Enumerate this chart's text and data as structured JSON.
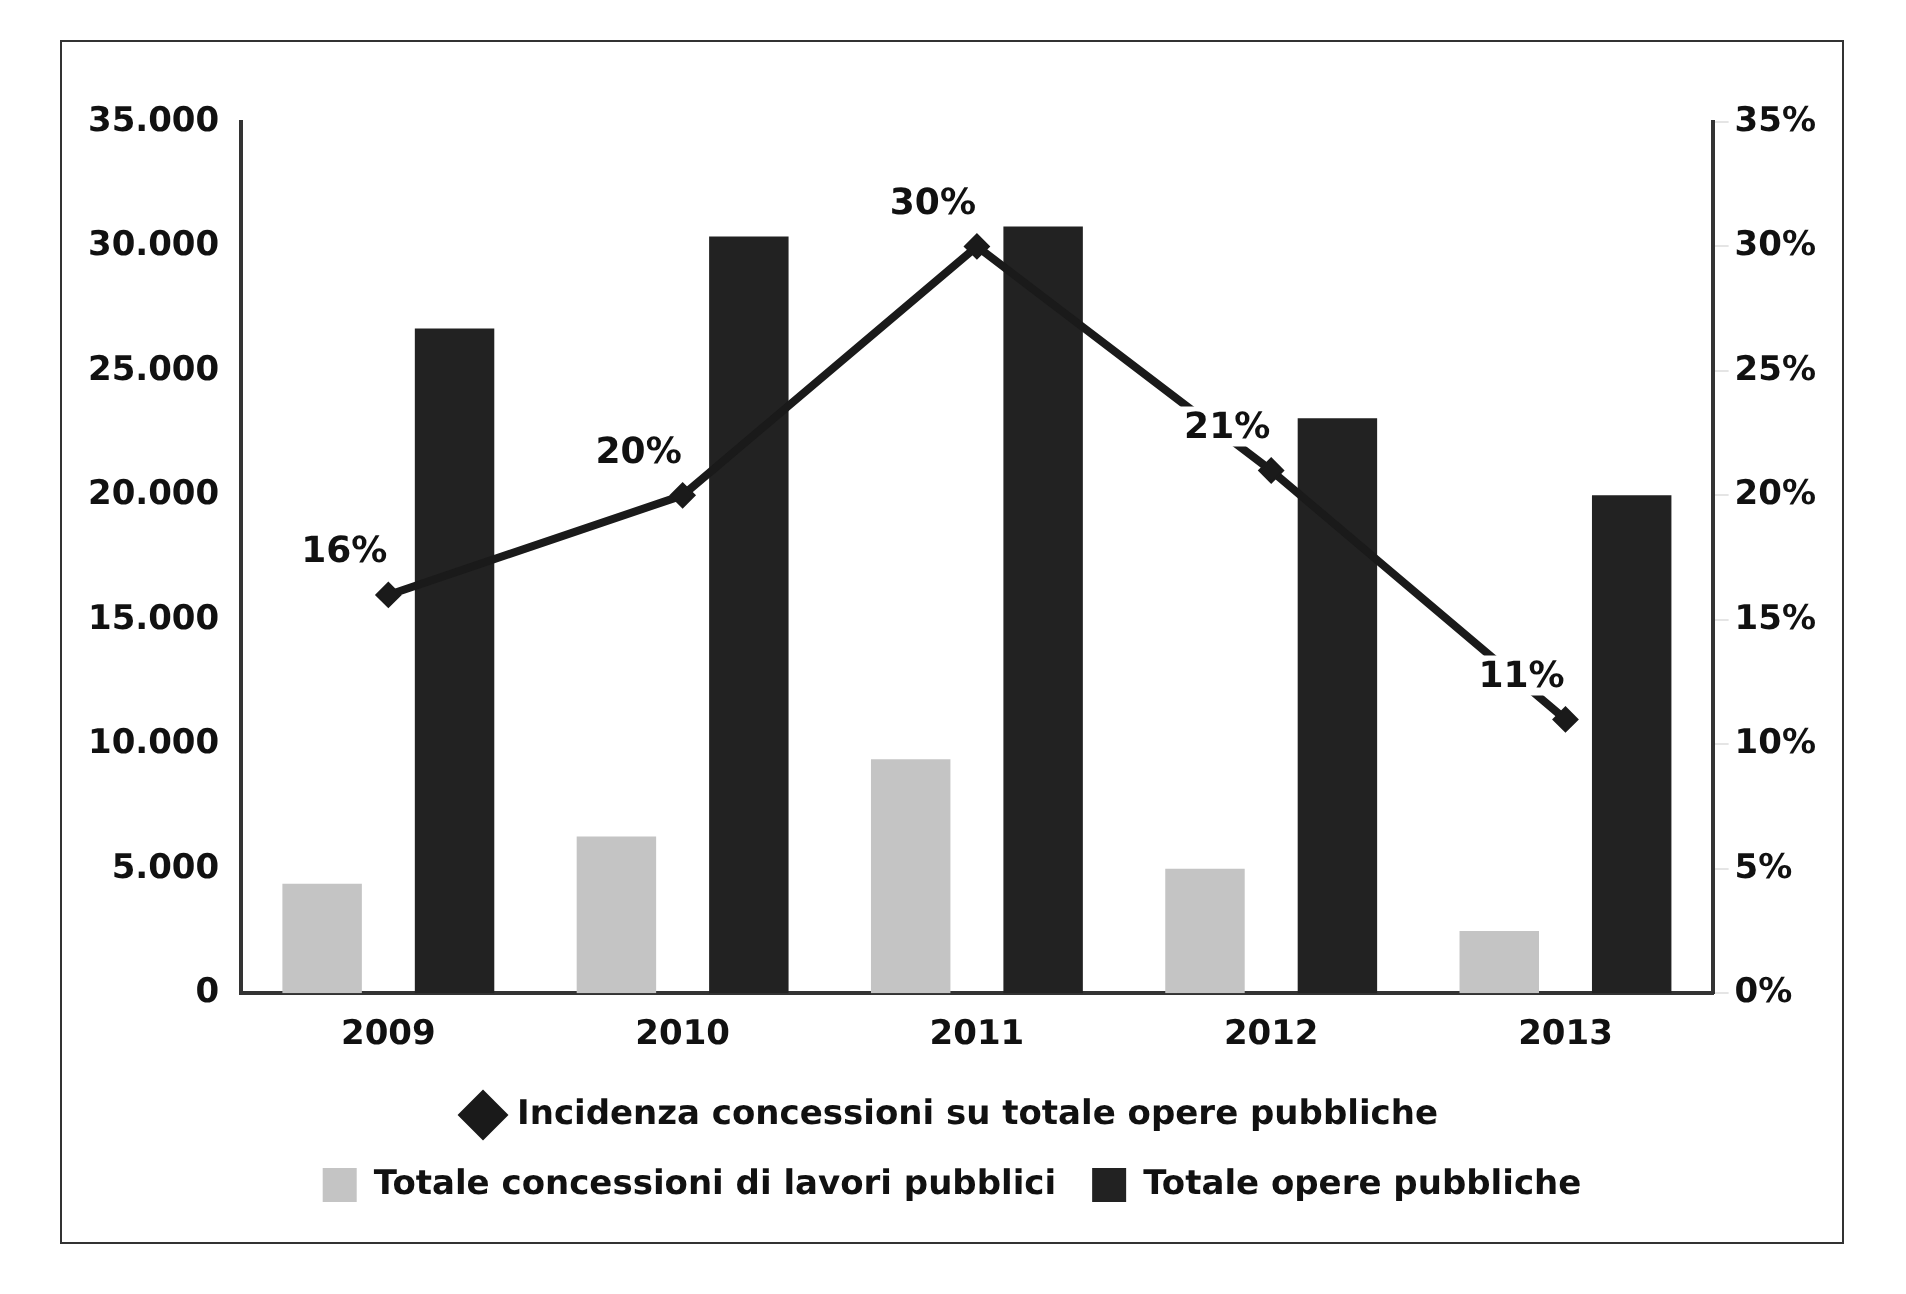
{
  "chart_data": {
    "type": "bar",
    "categories": [
      "2009",
      "2010",
      "2011",
      "2012",
      "2013"
    ],
    "series": [
      {
        "name": "Totale concessioni di lavori pubblici",
        "color": "#c4c4c4",
        "values": [
          4400,
          6300,
          9400,
          5000,
          2500
        ]
      },
      {
        "name": "Totale opere pubbliche",
        "color": "#222222",
        "values": [
          26700,
          30400,
          30800,
          23100,
          20000
        ]
      },
      {
        "name": "Incidenza concessioni su totale opere pubbliche",
        "type": "line",
        "axis": "y2",
        "color": "#1a1a1a",
        "values": [
          16,
          20,
          30,
          21,
          11
        ],
        "value_labels": [
          "16%",
          "20%",
          "30%",
          "21%",
          "11%"
        ]
      }
    ],
    "ylim": [
      0,
      35000
    ],
    "yticks": [
      {
        "value": 0,
        "label": "0"
      },
      {
        "value": 5000,
        "label": "5.000"
      },
      {
        "value": 10000,
        "label": "10.000"
      },
      {
        "value": 15000,
        "label": "15.000"
      },
      {
        "value": 20000,
        "label": "20.000"
      },
      {
        "value": 25000,
        "label": "25.000"
      },
      {
        "value": 30000,
        "label": "30.000"
      },
      {
        "value": 35000,
        "label": "35.000"
      }
    ],
    "y2lim": [
      0,
      35
    ],
    "y2ticks": [
      {
        "value": 0,
        "label": "0%"
      },
      {
        "value": 5,
        "label": "5%"
      },
      {
        "value": 10,
        "label": "10%"
      },
      {
        "value": 15,
        "label": "15%"
      },
      {
        "value": 20,
        "label": "20%"
      },
      {
        "value": 25,
        "label": "25%"
      },
      {
        "value": 30,
        "label": "30%"
      },
      {
        "value": 35,
        "label": "35%"
      }
    ],
    "grid": false,
    "legend": "bottom",
    "marker": "diamond",
    "line_style": "solid"
  }
}
